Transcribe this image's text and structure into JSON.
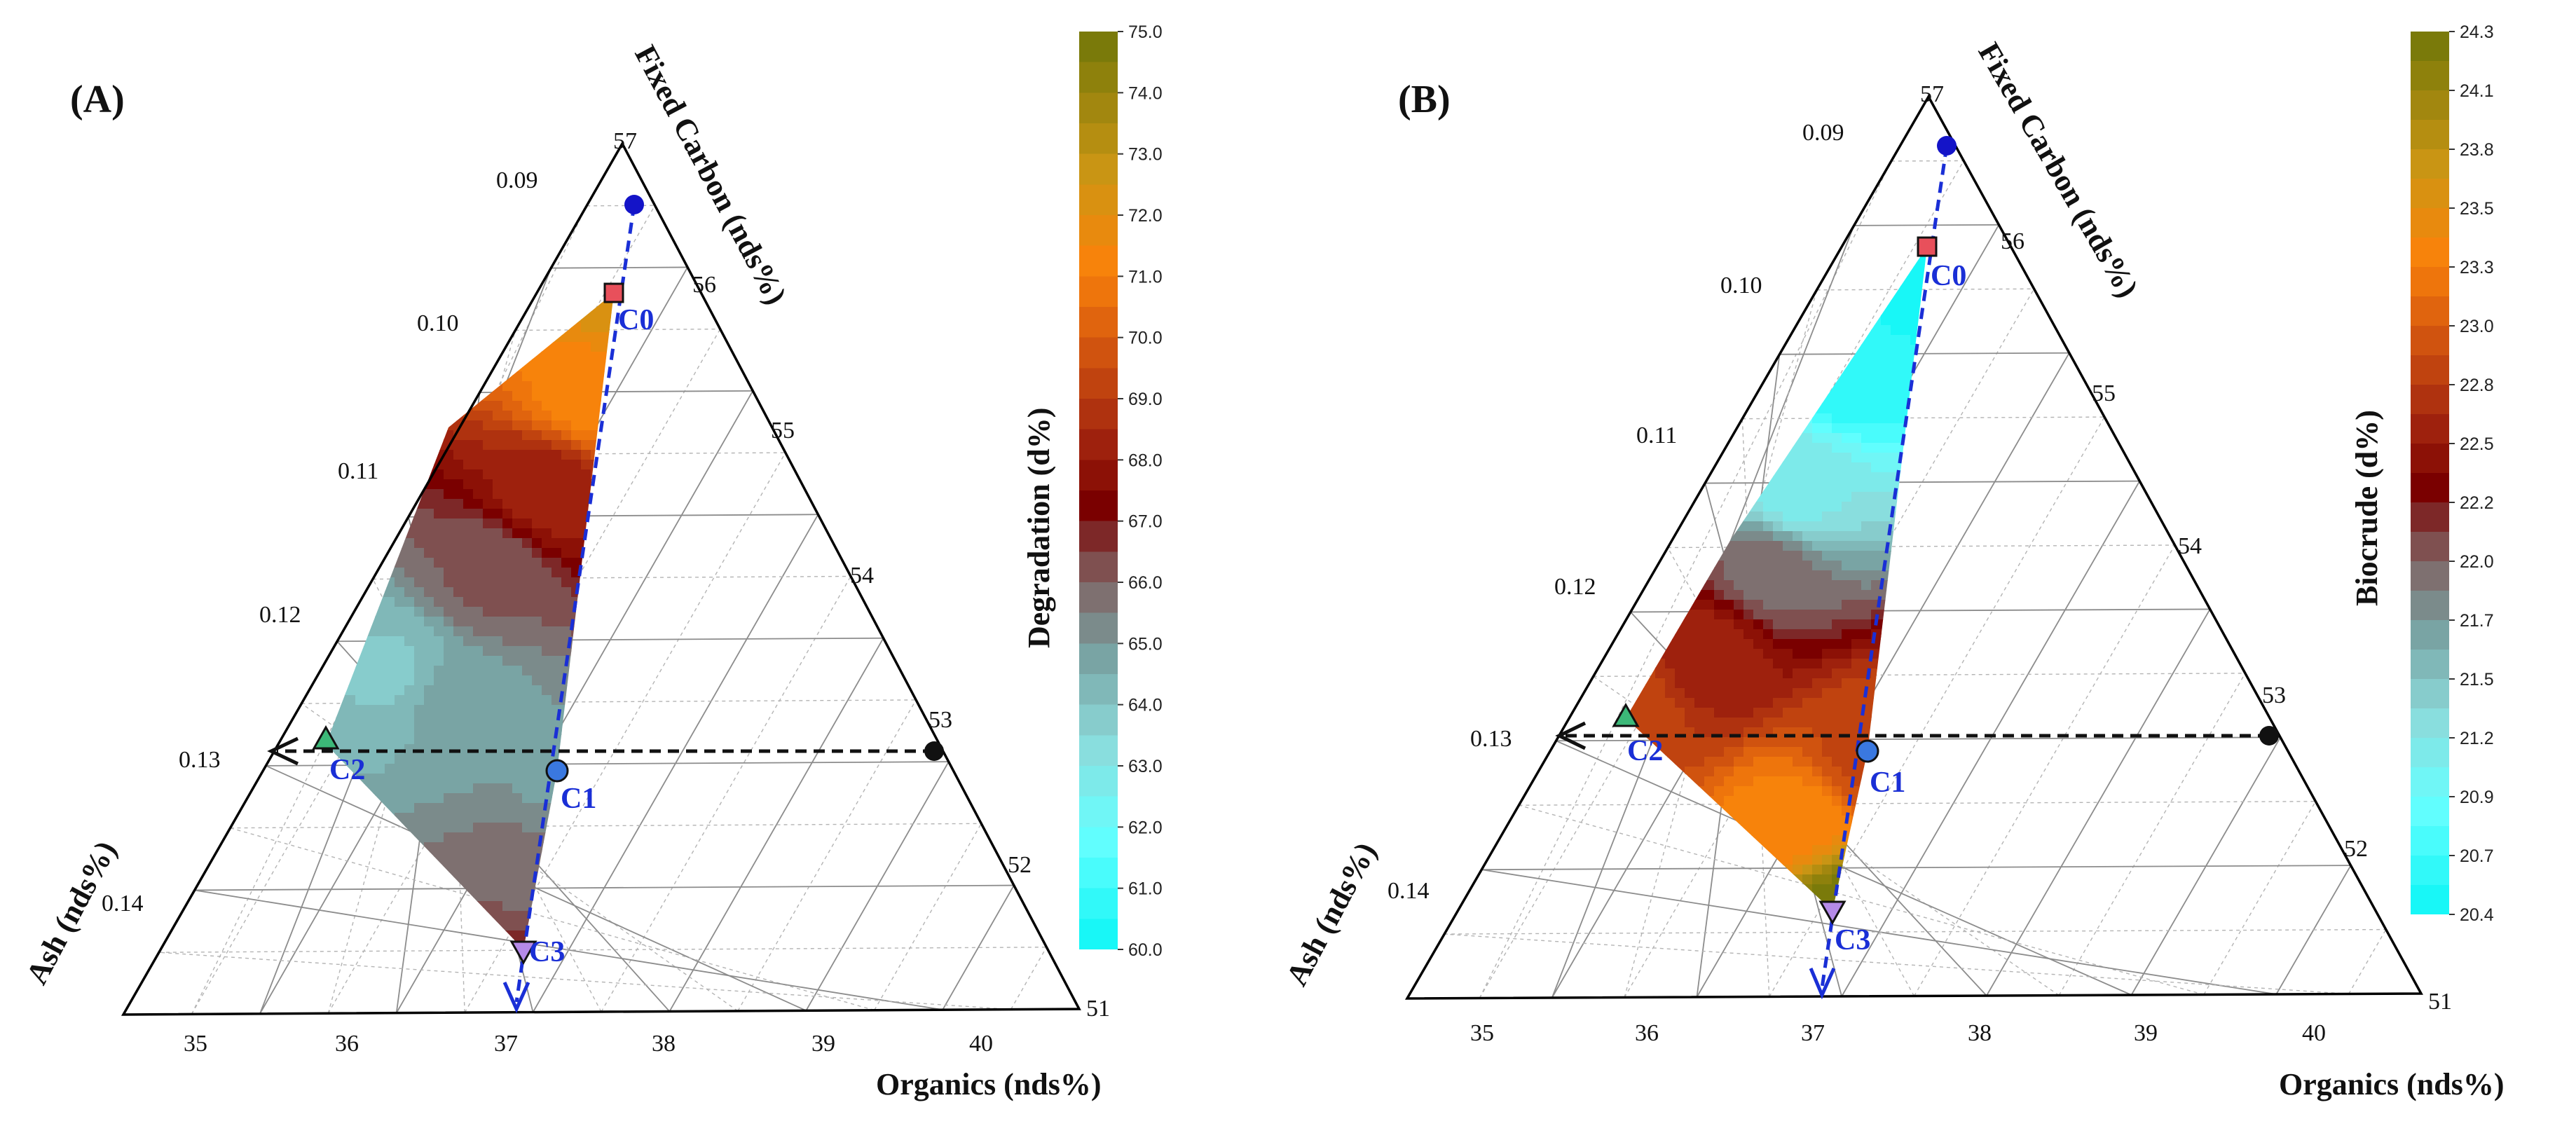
{
  "chart_data": [
    {
      "type": "ternary-contour",
      "panel_label": "(A)",
      "axes": {
        "top": {
          "title": "Fixed Carbon (nds%)",
          "ticks": [
            "57",
            "56",
            "55",
            "54",
            "53",
            "52",
            "51"
          ]
        },
        "left": {
          "title": "Ash (nds%)",
          "ticks": [
            "0.09",
            "0.10",
            "0.11",
            "0.12",
            "0.13",
            "0.14"
          ]
        },
        "bottom": {
          "title": "Organics (nds%)",
          "ticks": [
            "35",
            "36",
            "37",
            "38",
            "39",
            "40"
          ]
        }
      },
      "colorbar": {
        "title": "Degradation (d%)",
        "range": [
          60.0,
          75.0
        ],
        "ticks": [
          "75.0",
          "74.0",
          "73.0",
          "72.0",
          "71.0",
          "70.0",
          "69.0",
          "68.0",
          "67.0",
          "66.0",
          "65.0",
          "64.0",
          "63.0",
          "62.0",
          "61.0",
          "60.0"
        ]
      },
      "points": [
        {
          "label": "C0",
          "marker": "square",
          "color": "#e8505b",
          "value": 72.5
        },
        {
          "label": "C1",
          "marker": "circle",
          "color": "#3a78e0",
          "value": 65.2
        },
        {
          "label": "C2",
          "marker": "triangle-up",
          "color": "#3cb878",
          "value": 64.2
        },
        {
          "label": "C3",
          "marker": "triangle-down",
          "color": "#b58ae8",
          "value": 66.8
        }
      ],
      "extra_markers": [
        "#1414c8",
        "#111111"
      ]
    },
    {
      "type": "ternary-contour",
      "panel_label": "(B)",
      "axes": {
        "top": {
          "title": "Fixed Carbon (nds%)",
          "ticks": [
            "57",
            "56",
            "55",
            "54",
            "53",
            "52",
            "51"
          ]
        },
        "left": {
          "title": "Ash (nds%)",
          "ticks": [
            "0.09",
            "0.10",
            "0.11",
            "0.12",
            "0.13",
            "0.14"
          ]
        },
        "bottom": {
          "title": "Organics (nds%)",
          "ticks": [
            "35",
            "36",
            "37",
            "38",
            "39",
            "40"
          ]
        }
      },
      "colorbar": {
        "title": "Biocrude (d%)",
        "range": [
          20.4,
          24.3
        ],
        "ticks": [
          "24.3",
          "24.1",
          "23.8",
          "23.5",
          "23.3",
          "23.0",
          "22.8",
          "22.5",
          "22.2",
          "22.0",
          "21.7",
          "21.5",
          "21.2",
          "20.9",
          "20.7",
          "20.4"
        ]
      },
      "points": [
        {
          "label": "C0",
          "marker": "square",
          "color": "#e8505b",
          "value": 20.5
        },
        {
          "label": "C1",
          "marker": "circle",
          "color": "#3a78e0",
          "value": 22.9
        },
        {
          "label": "C2",
          "marker": "triangle-up",
          "color": "#3cb878",
          "value": 22.9
        },
        {
          "label": "C3",
          "marker": "triangle-down",
          "color": "#b58ae8",
          "value": 24.3
        }
      ],
      "extra_markers": [
        "#1414c8",
        "#111111"
      ]
    }
  ]
}
